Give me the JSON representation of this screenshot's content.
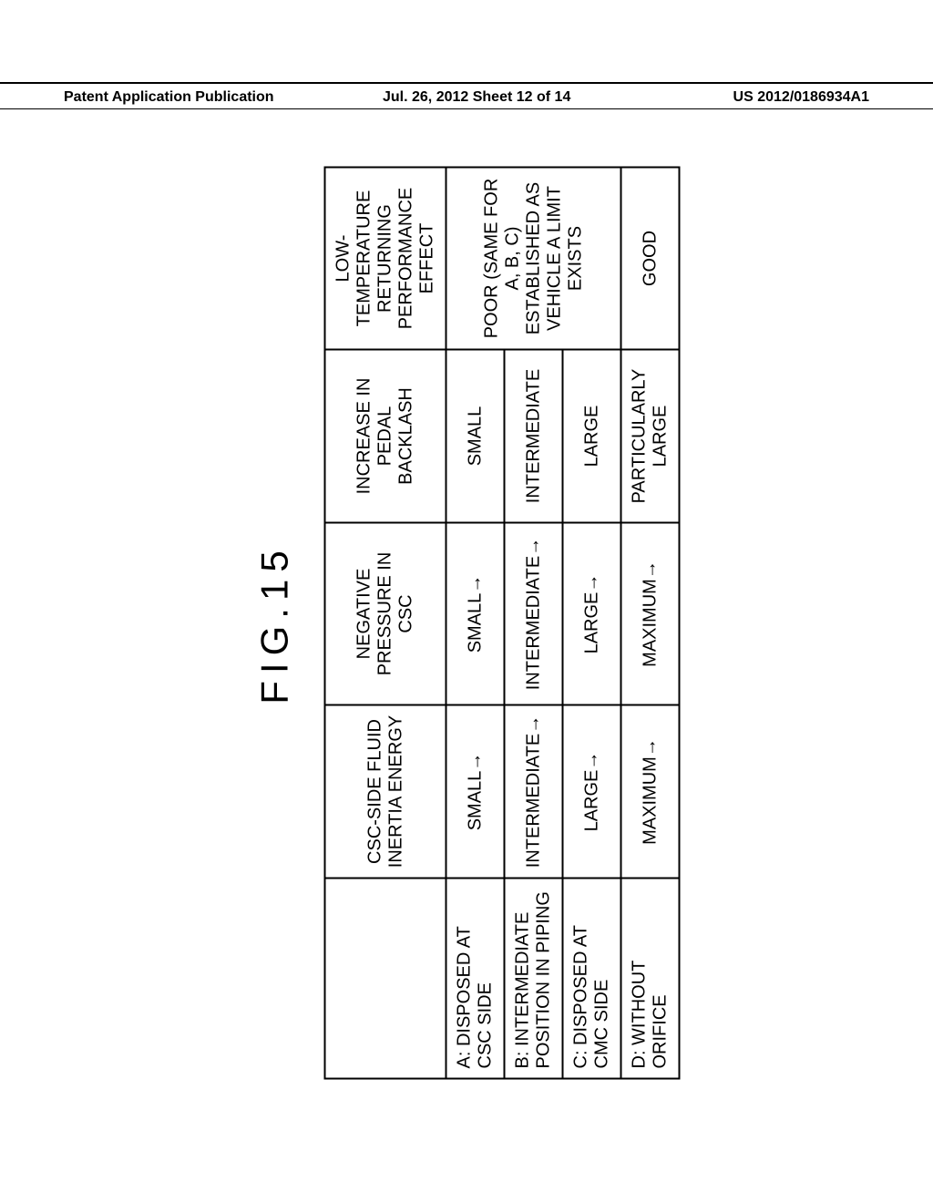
{
  "header": {
    "left": "Patent Application Publication",
    "center": "Jul. 26, 2012  Sheet 12 of 14",
    "right": "US 2012/0186934A1"
  },
  "figure_label": "FIG.15",
  "table": {
    "headers": {
      "col1": "",
      "col2": "CSC-SIDE FLUID INERTIA ENERGY",
      "col3": "NEGATIVE PRESSURE IN CSC",
      "col4": "INCREASE IN PEDAL BACKLASH",
      "col5": "LOW-TEMPERATURE RETURNING PERFORMANCE EFFECT"
    },
    "rows": [
      {
        "label": "A: DISPOSED AT CSC SIDE",
        "c2": "SMALL→",
        "c3": "SMALL→",
        "c4": "SMALL",
        "c5": null
      },
      {
        "label": "B: INTERMEDIATE POSITION IN PIPING",
        "c2": "INTERMEDIATE→",
        "c3": "INTERMEDIATE→",
        "c4": "INTERMEDIATE",
        "c5": null
      },
      {
        "label": "C: DISPOSED AT CMC SIDE",
        "c2": "LARGE→",
        "c3": "LARGE→",
        "c4": "LARGE",
        "c5": null
      },
      {
        "label": "D: WITHOUT ORIFICE",
        "c2": "MAXIMUM→",
        "c3": "MAXIMUM→",
        "c4": "PARTICULARLY LARGE",
        "c5": "GOOD"
      }
    ],
    "merged_c5": "POOR\n(SAME FOR A, B, C)\nESTABLISHED AS VEHICLE A LIMIT EXISTS"
  },
  "styling": {
    "background_color": "#ffffff",
    "text_color": "#000000",
    "border_color": "#000000",
    "border_width": 2,
    "font_size_table": 20,
    "font_size_fig": 42,
    "font_size_header": 16,
    "rotation_deg": -90
  }
}
